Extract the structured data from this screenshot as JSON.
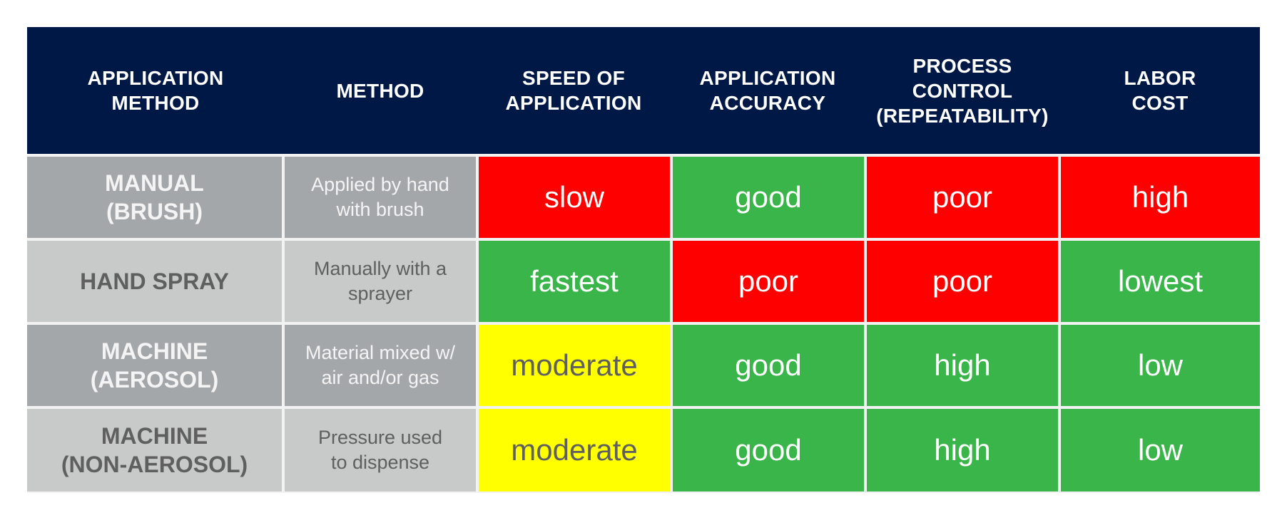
{
  "colors": {
    "header_bg": "#001845",
    "header_text": "#ffffff",
    "row_gray_dark": "#a4a7aa",
    "row_gray_light": "#c8c9c9",
    "method_text_dark_row": "#f4f4f4",
    "method_text_light_row": "#5f5f5f",
    "red": "#ff0000",
    "green": "#3ab54a",
    "yellow": "#ffff00",
    "rating_text_light": "#ffffff",
    "rating_text_on_yellow": "#5f5f5f"
  },
  "header": {
    "col1": "APPLICATION\nMETHOD",
    "col2": "METHOD",
    "col3": "SPEED OF\nAPPLICATION",
    "col4": "APPLICATION\nACCURACY",
    "col5": "PROCESS\nCONTROL\n(REPEATABILITY)",
    "col6": "LABOR\nCOST"
  },
  "rows": [
    {
      "method": "MANUAL\n(BRUSH)",
      "desc": "Applied by hand\nwith brush",
      "speed": {
        "text": "slow",
        "level": "red"
      },
      "accuracy": {
        "text": "good",
        "level": "green"
      },
      "control": {
        "text": "poor",
        "level": "red"
      },
      "cost": {
        "text": "high",
        "level": "red"
      }
    },
    {
      "method": "HAND SPRAY",
      "desc": "Manually with a\nsprayer",
      "speed": {
        "text": "fastest",
        "level": "green"
      },
      "accuracy": {
        "text": "poor",
        "level": "red"
      },
      "control": {
        "text": "poor",
        "level": "red"
      },
      "cost": {
        "text": "lowest",
        "level": "green"
      }
    },
    {
      "method": "MACHINE\n(AEROSOL)",
      "desc": "Material mixed w/\nair and/or gas",
      "speed": {
        "text": "moderate",
        "level": "yellow"
      },
      "accuracy": {
        "text": "good",
        "level": "green"
      },
      "control": {
        "text": "high",
        "level": "green"
      },
      "cost": {
        "text": "low",
        "level": "green"
      }
    },
    {
      "method": "MACHINE\n(NON-AEROSOL)",
      "desc": "Pressure used\nto dispense",
      "speed": {
        "text": "moderate",
        "level": "yellow"
      },
      "accuracy": {
        "text": "good",
        "level": "green"
      },
      "control": {
        "text": "high",
        "level": "green"
      },
      "cost": {
        "text": "low",
        "level": "green"
      }
    }
  ]
}
